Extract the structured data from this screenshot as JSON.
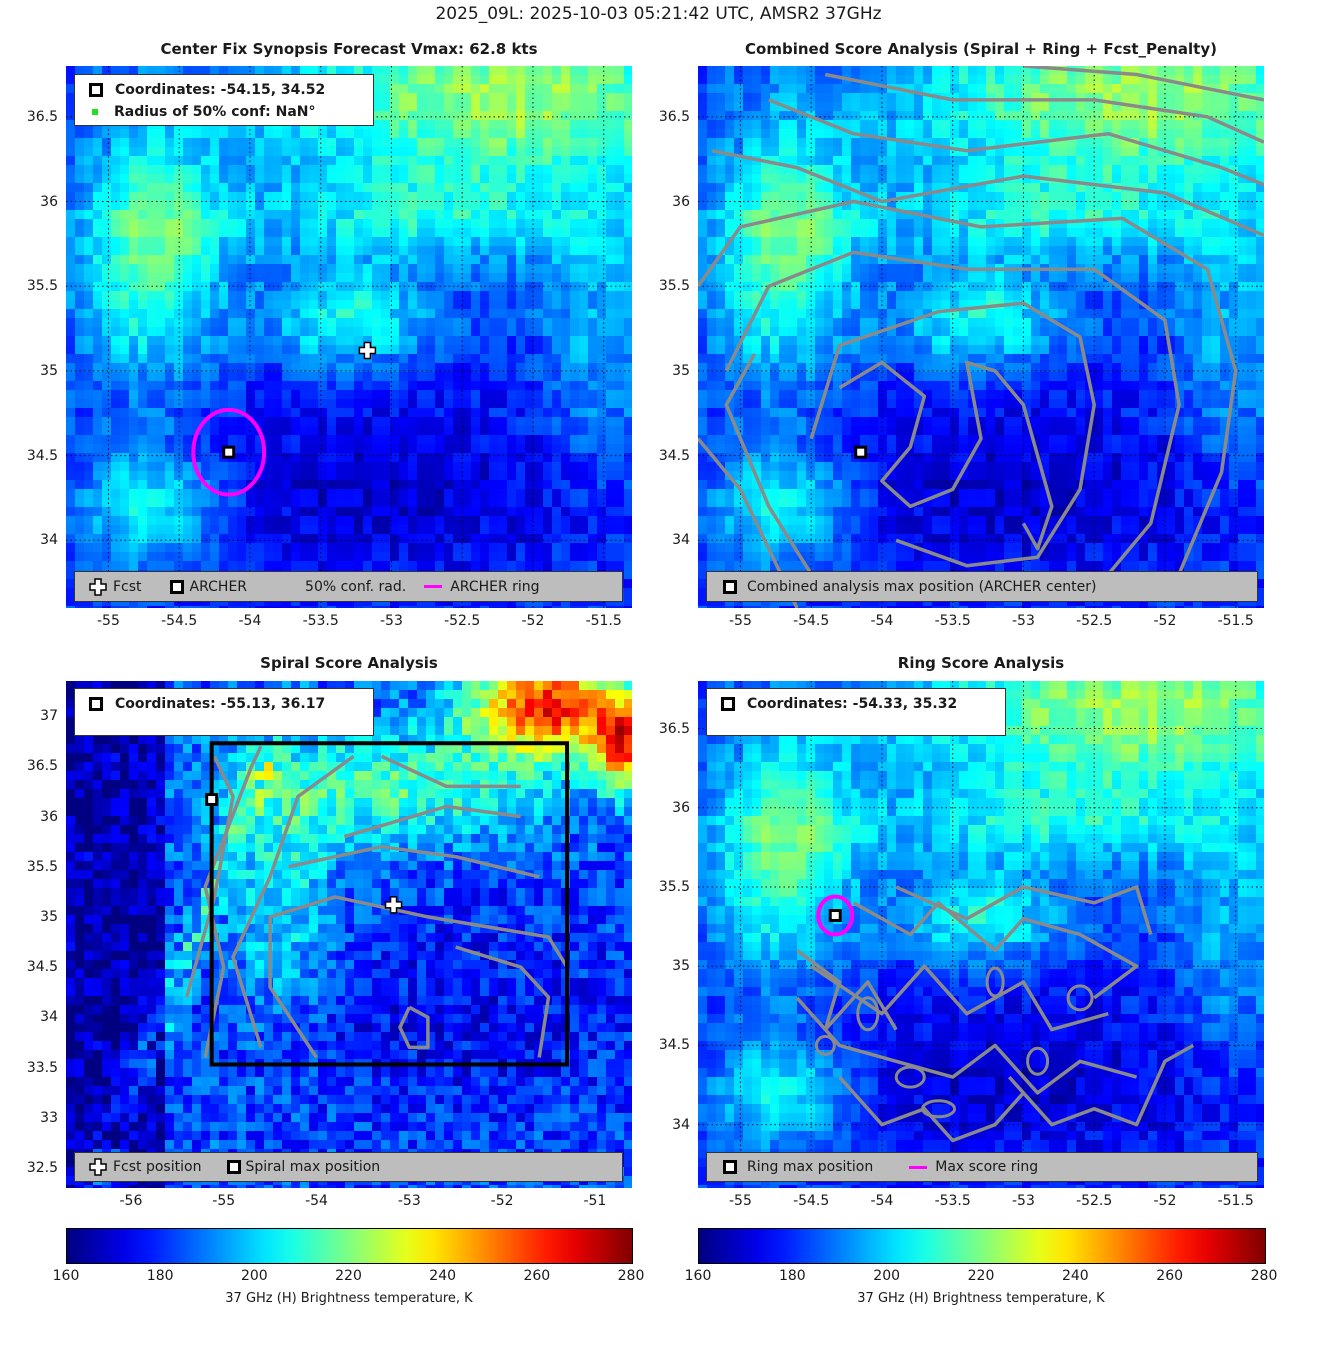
{
  "title": "2025_09L: 2025-10-03 05:21:42 UTC, AMSR2 37GHz",
  "panels": {
    "synopsis": {
      "title": "Center Fix Synopsis     Forecast Vmax: 62.8 kts",
      "coord_text": "Coordinates: -54.15, 34.52",
      "radius_text": "Radius of 50% conf: NaN°",
      "legend": {
        "fcst": "Fcst",
        "archer": "ARCHER",
        "conf": "50% conf. rad.",
        "ring": "ARCHER ring"
      }
    },
    "combined": {
      "title": "Combined Score Analysis (Spiral + Ring + Fcst_Penalty)",
      "legend": {
        "max": "Combined analysis max position (ARCHER center)"
      }
    },
    "spiral": {
      "title": "Spiral Score Analysis",
      "coord_text": "Coordinates: -55.13, 36.17",
      "legend": {
        "fcst": "Fcst position",
        "max": "Spiral max position"
      }
    },
    "ring": {
      "title": "Ring Score Analysis",
      "coord_text": "Coordinates: -54.33, 35.32",
      "legend": {
        "max": "Ring max position",
        "ring": "Max score ring"
      }
    }
  },
  "colorbar": {
    "label": "37 GHz (H) Brightness temperature, K",
    "ticks": [
      "160",
      "180",
      "200",
      "220",
      "240",
      "260",
      "280"
    ],
    "range": [
      160,
      280
    ],
    "colormap": "jet"
  },
  "chart_data": [
    {
      "type": "heatmap",
      "name": "synopsis",
      "title": "Center Fix Synopsis     Forecast Vmax: 62.8 kts",
      "xlim": [
        -55.3,
        -51.3
      ],
      "ylim": [
        33.6,
        36.8
      ],
      "xticks": [
        "-55",
        "-54.5",
        "-54",
        "-53.5",
        "-53",
        "-52.5",
        "-52",
        "-51.5"
      ],
      "yticks": [
        "34",
        "34.5",
        "35",
        "35.5",
        "36",
        "36.5"
      ],
      "fcst": [
        -53.17,
        35.12
      ],
      "archer_center": [
        -54.15,
        34.52
      ],
      "ring_radius_deg": 0.25,
      "grid": true,
      "colors": {
        "ring": "#ff00ff"
      }
    },
    {
      "type": "heatmap",
      "name": "combined",
      "title": "Combined Score Analysis (Spiral + Ring + Fcst_Penalty)",
      "xlim": [
        -55.3,
        -51.3
      ],
      "ylim": [
        33.6,
        36.8
      ],
      "xticks": [
        "-55",
        "-54.5",
        "-54",
        "-53.5",
        "-53",
        "-52.5",
        "-52",
        "-51.5"
      ],
      "yticks": [
        "34",
        "34.5",
        "35",
        "35.5",
        "36",
        "36.5"
      ],
      "max_position": [
        -54.15,
        34.52
      ],
      "grid": true
    },
    {
      "type": "heatmap",
      "name": "spiral",
      "title": "Spiral Score Analysis",
      "xlim": [
        -56.7,
        -50.6
      ],
      "ylim": [
        32.3,
        37.35
      ],
      "xticks": [
        "-56",
        "-55",
        "-54",
        "-53",
        "-52",
        "-51"
      ],
      "yticks": [
        "32.5",
        "33",
        "33.5",
        "34",
        "34.5",
        "35",
        "35.5",
        "36",
        "36.5",
        "37"
      ],
      "fcst": [
        -53.17,
        35.12
      ],
      "spiral_max": [
        -55.13,
        36.17
      ],
      "search_box": {
        "lon": [
          -55.13,
          -51.3
        ],
        "lat": [
          33.53,
          36.73
        ]
      },
      "grid": false
    },
    {
      "type": "heatmap",
      "name": "ring",
      "title": "Ring Score Analysis",
      "xlim": [
        -55.3,
        -51.3
      ],
      "ylim": [
        33.6,
        36.8
      ],
      "xticks": [
        "-55",
        "-54.5",
        "-54",
        "-53.5",
        "-53",
        "-52.5",
        "-52",
        "-51.5"
      ],
      "yticks": [
        "34",
        "34.5",
        "35",
        "35.5",
        "36",
        "36.5"
      ],
      "ring_max": [
        -54.33,
        35.32
      ],
      "ring_radius_deg": 0.12,
      "grid": true,
      "colors": {
        "ring": "#ff00ff"
      }
    }
  ]
}
